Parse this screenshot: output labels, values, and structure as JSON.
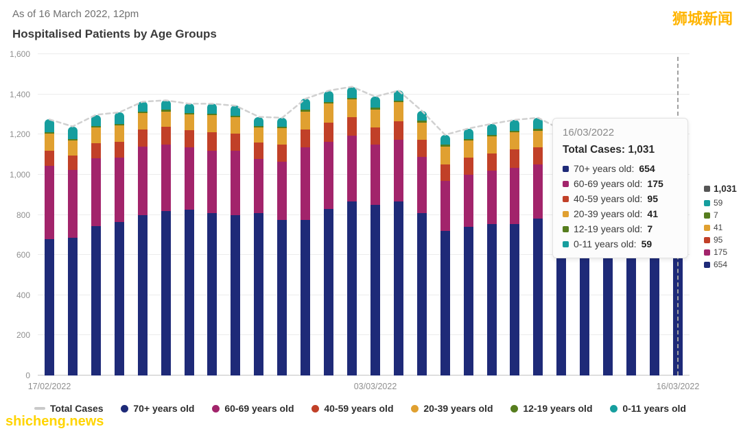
{
  "header": {
    "as_of": "As of 16 March 2022, 12pm",
    "title": "Hospitalised Patients by Age Groups"
  },
  "watermarks": {
    "top_right": "狮城新闻",
    "bottom_left": "shicheng.news"
  },
  "tooltip": {
    "date": "16/03/2022",
    "total_label": "Total Cases:",
    "total_value": "1,031",
    "rows": [
      {
        "label": "70+ years old:",
        "value": "654",
        "color": "#1e2a78"
      },
      {
        "label": "60-69 years old:",
        "value": "175",
        "color": "#a2246b"
      },
      {
        "label": "40-59 years old:",
        "value": "95",
        "color": "#c14028"
      },
      {
        "label": "20-39 years old:",
        "value": "41",
        "color": "#e0a030"
      },
      {
        "label": "12-19 years old:",
        "value": "7",
        "color": "#567d1e"
      },
      {
        "label": "0-11 years old:",
        "value": "59",
        "color": "#169e9e"
      }
    ]
  },
  "right_labels": [
    {
      "text": "1,031",
      "color": "#565656",
      "big": true
    },
    {
      "text": "59",
      "color": "#169e9e",
      "big": false
    },
    {
      "text": "7",
      "color": "#567d1e",
      "big": false
    },
    {
      "text": "41",
      "color": "#e0a030",
      "big": false
    },
    {
      "text": "95",
      "color": "#c14028",
      "big": false
    },
    {
      "text": "175",
      "color": "#a2246b",
      "big": false
    },
    {
      "text": "654",
      "color": "#1e2a78",
      "big": false
    }
  ],
  "legend": [
    {
      "label": "Total Cases",
      "marker": "line",
      "color": "#c9c9c9"
    },
    {
      "label": "70+ years old",
      "marker": "dot",
      "color": "#1e2a78"
    },
    {
      "label": "60-69 years old",
      "marker": "dot",
      "color": "#a2246b"
    },
    {
      "label": "40-59 years old",
      "marker": "dot",
      "color": "#c14028"
    },
    {
      "label": "20-39 years old",
      "marker": "dot",
      "color": "#e0a030"
    },
    {
      "label": "12-19 years old",
      "marker": "dot",
      "color": "#567d1e"
    },
    {
      "label": "0-11 years old",
      "marker": "dot",
      "color": "#169e9e"
    }
  ],
  "chart_data": {
    "type": "bar",
    "stacked": true,
    "title": "Hospitalised Patients by Age Groups",
    "ylim": [
      0,
      1600
    ],
    "yticks": [
      0,
      200,
      400,
      600,
      800,
      1000,
      1200,
      1400,
      1600
    ],
    "ytick_labels": [
      "0",
      "200",
      "400",
      "600",
      "800",
      "1,000",
      "1,200",
      "1,400",
      "1,600"
    ],
    "x_axis_labels": [
      "17/02/2022",
      "03/03/2022",
      "16/03/2022"
    ],
    "dates": [
      "17/02/2022",
      "18/02/2022",
      "19/02/2022",
      "20/02/2022",
      "21/02/2022",
      "22/02/2022",
      "23/02/2022",
      "24/02/2022",
      "25/02/2022",
      "26/02/2022",
      "27/02/2022",
      "28/02/2022",
      "01/03/2022",
      "02/03/2022",
      "03/03/2022",
      "04/03/2022",
      "05/03/2022",
      "06/03/2022",
      "07/03/2022",
      "08/03/2022",
      "09/03/2022",
      "10/03/2022",
      "11/03/2022",
      "12/03/2022",
      "13/03/2022",
      "14/03/2022",
      "15/03/2022",
      "16/03/2022"
    ],
    "series": [
      {
        "name": "70+ years old",
        "color": "#1e2a78",
        "values": [
          680,
          685,
          745,
          765,
          800,
          820,
          825,
          810,
          800,
          810,
          775,
          775,
          830,
          865,
          850,
          865,
          810,
          720,
          740,
          755,
          755,
          780,
          750,
          755,
          760,
          740,
          700,
          654
        ]
      },
      {
        "name": "60-69 years old",
        "color": "#a2246b",
        "values": [
          365,
          340,
          335,
          320,
          340,
          330,
          310,
          310,
          320,
          270,
          290,
          360,
          335,
          330,
          300,
          310,
          280,
          250,
          260,
          265,
          280,
          270,
          255,
          250,
          240,
          230,
          210,
          175
        ]
      },
      {
        "name": "40-59 years old",
        "color": "#c14028",
        "values": [
          75,
          70,
          75,
          80,
          85,
          90,
          85,
          90,
          85,
          80,
          85,
          90,
          95,
          90,
          85,
          90,
          85,
          80,
          85,
          85,
          90,
          85,
          80,
          80,
          80,
          80,
          90,
          95
        ]
      },
      {
        "name": "20-39 years old",
        "color": "#e0a030",
        "values": [
          85,
          75,
          80,
          80,
          80,
          75,
          80,
          85,
          80,
          75,
          80,
          90,
          95,
          90,
          90,
          95,
          85,
          90,
          85,
          85,
          85,
          85,
          80,
          80,
          75,
          70,
          60,
          41
        ]
      },
      {
        "name": "12-19 years old",
        "color": "#567d1e",
        "values": [
          8,
          8,
          8,
          8,
          8,
          8,
          8,
          8,
          8,
          8,
          8,
          8,
          8,
          8,
          8,
          8,
          8,
          8,
          8,
          8,
          8,
          8,
          8,
          8,
          8,
          8,
          8,
          7
        ]
      },
      {
        "name": "0-11 years old",
        "color": "#169e9e",
        "values": [
          62,
          62,
          55,
          57,
          50,
          47,
          45,
          50,
          50,
          45,
          45,
          55,
          55,
          55,
          55,
          50,
          50,
          50,
          52,
          55,
          55,
          55,
          50,
          50,
          50,
          50,
          55,
          59
        ]
      }
    ],
    "total_line": {
      "name": "Total Cases",
      "color": "#d0d0d0",
      "style": "dashed"
    },
    "legend_position": "bottom",
    "grid": true
  }
}
